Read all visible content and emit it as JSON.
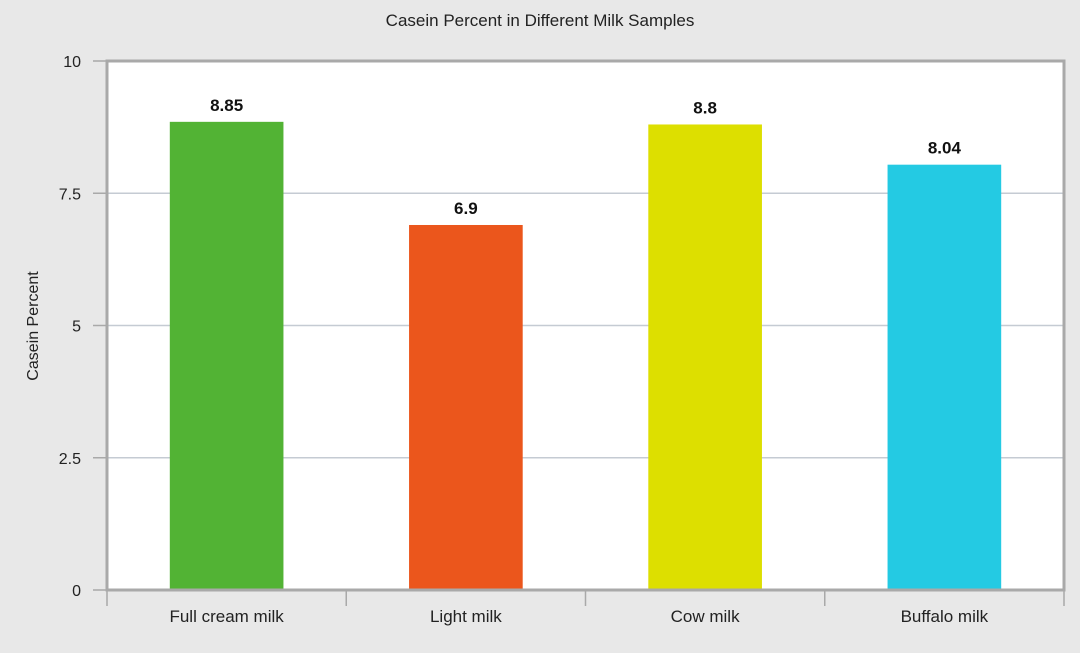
{
  "chart_data": {
    "type": "bar",
    "title": "Casein Percent in Different Milk Samples",
    "xlabel": "",
    "ylabel": "Casein Percent",
    "categories": [
      "Full cream milk",
      "Light milk",
      "Cow milk",
      "Buffalo milk"
    ],
    "values": [
      8.85,
      6.9,
      8.8,
      8.04
    ],
    "value_labels": [
      "8.85",
      "6.9",
      "8.8",
      "8.04"
    ],
    "colors": [
      "#52b334",
      "#eb561c",
      "#dddf00",
      "#24cae3"
    ],
    "ylim": [
      0,
      10
    ],
    "yticks": [
      0,
      2.5,
      5,
      7.5,
      10
    ],
    "ytick_labels": [
      "0",
      "2.5",
      "5",
      "7.5",
      "10"
    ],
    "grid": true,
    "legend": "none"
  }
}
